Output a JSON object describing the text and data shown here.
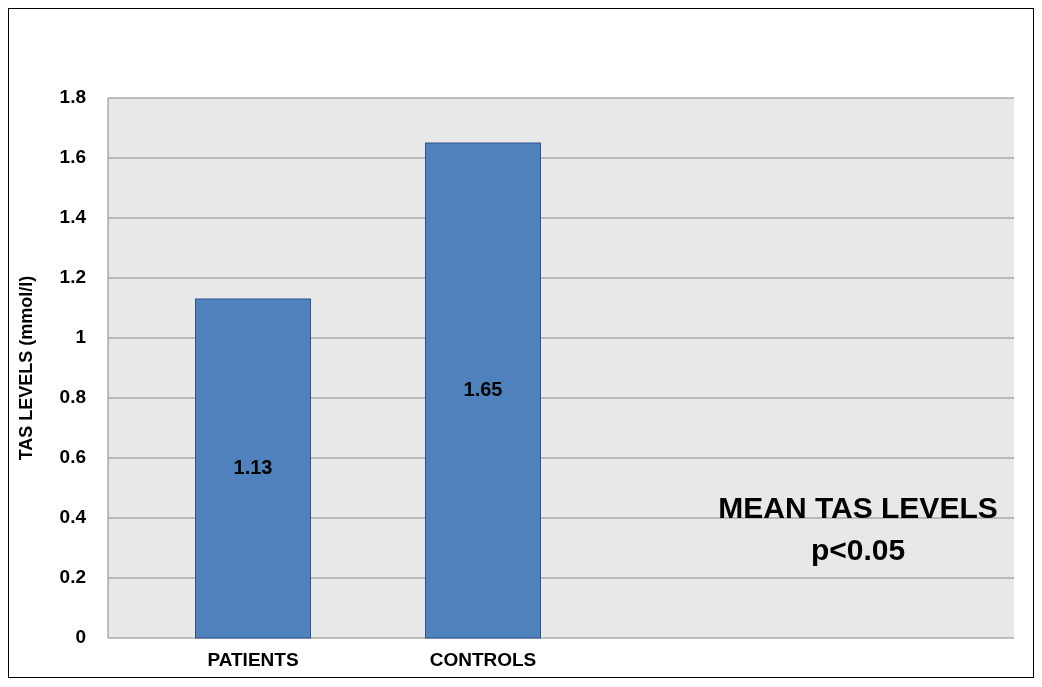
{
  "chart_data": {
    "type": "bar",
    "title": "MEAN TAS LEVELS",
    "subtitle": "p<0.05",
    "ylabel": "TAS  LEVELS (mmol/l)",
    "categories": [
      "PATIENTS",
      "CONTROLS"
    ],
    "values": [
      1.13,
      1.65
    ],
    "color": "#4f81bd",
    "ylim": [
      0,
      1.8
    ],
    "yticks": [
      0,
      0.2,
      0.4,
      0.6,
      0.8,
      1,
      1.2,
      1.4,
      1.6,
      1.8
    ],
    "grid": "y",
    "data_labels": true
  }
}
